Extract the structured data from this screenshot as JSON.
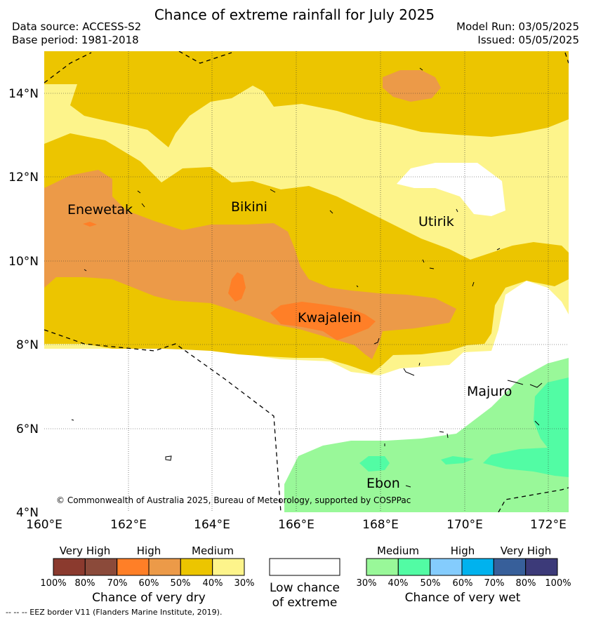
{
  "header": {
    "title": "Chance of extreme rainfall for July 2025",
    "data_source": "Data source: ACCESS-S2",
    "base_period": "Base period: 1981-2018",
    "model_run": "Model Run: 03/05/2025",
    "issued": "Issued: 05/05/2025"
  },
  "map": {
    "lat_ticks": [
      "14°N",
      "12°N",
      "10°N",
      "8°N",
      "6°N",
      "4°N"
    ],
    "lon_ticks": [
      "160°E",
      "162°E",
      "164°E",
      "166°E",
      "168°E",
      "170°E",
      "172°E"
    ],
    "places": {
      "enewetak": "Enewetak",
      "bikini": "Bikini",
      "utirik": "Utirik",
      "kwajalein": "Kwajalein",
      "majuro": "Majuro",
      "ebon": "Ebon"
    },
    "copyright": "© Commonwealth of Australia 2025, Bureau of Meteorology, supported by COSPPac"
  },
  "legend": {
    "dry": {
      "levels": [
        "Very High",
        "High",
        "Medium"
      ],
      "percents": [
        "100%",
        "80%",
        "70%",
        "60%",
        "50%",
        "40%",
        "30%"
      ],
      "colors": [
        "#8b3a2e",
        "#8b4a3a",
        "#ff7f27",
        "#ec9a48",
        "#ecc500",
        "#fdf48b"
      ],
      "title": "Chance of very dry"
    },
    "low": {
      "line1": "Low chance",
      "line2": "of extreme",
      "color": "#ffffff"
    },
    "wet": {
      "levels": [
        "Medium",
        "High",
        "Very High"
      ],
      "percents": [
        "30%",
        "40%",
        "50%",
        "60%",
        "70%",
        "80%",
        "100%"
      ],
      "colors": [
        "#99f899",
        "#52fca4",
        "#84ccfd",
        "#00b2ee",
        "#375f9a",
        "#3c3a79"
      ],
      "title": "Chance of very wet"
    },
    "eez_note": "--  --  -- EEZ border V11 (Flanders Marine Institute, 2019)."
  }
}
